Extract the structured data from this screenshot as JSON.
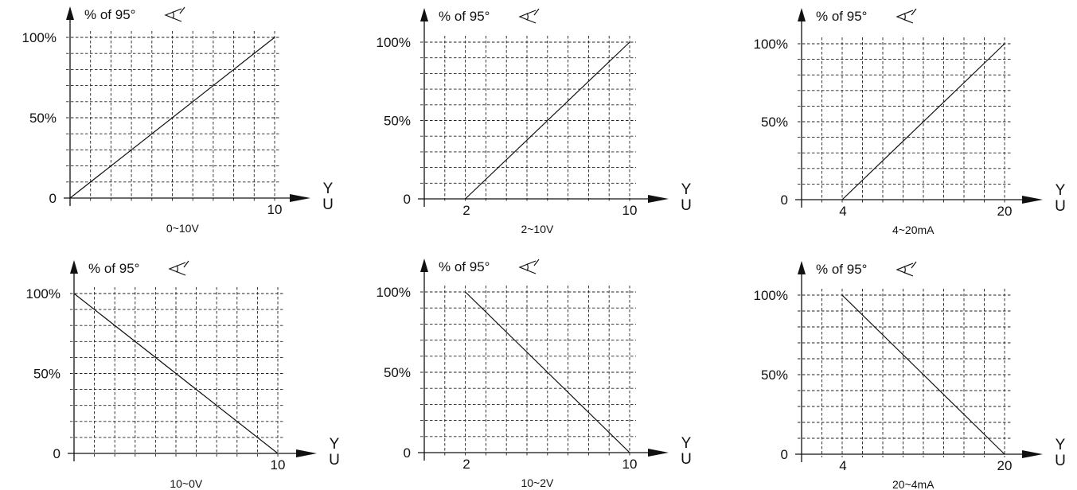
{
  "chart_data": [
    {
      "type": "line",
      "title": "0~10V",
      "ylabel": "% of 95°",
      "xlabel": "Y U",
      "xlim": [
        0,
        10
      ],
      "ylim": [
        0,
        100
      ],
      "x_tick_labels": [
        "10"
      ],
      "y_tick_labels": [
        "0",
        "50%",
        "100%"
      ],
      "grid": true,
      "series": [
        {
          "x": [
            0,
            10
          ],
          "y": [
            0,
            100
          ]
        }
      ]
    },
    {
      "type": "line",
      "title": "2~10V",
      "ylabel": "% of 95°",
      "xlabel": "Y U",
      "xlim": [
        0,
        10
      ],
      "ylim": [
        0,
        100
      ],
      "x_tick_labels": [
        "2",
        "10"
      ],
      "y_tick_labels": [
        "0",
        "50%",
        "100%"
      ],
      "grid": true,
      "series": [
        {
          "x": [
            2,
            10
          ],
          "y": [
            0,
            100
          ]
        }
      ]
    },
    {
      "type": "line",
      "title": "4~20mA",
      "ylabel": "% of 95°",
      "xlabel": "Y U",
      "xlim": [
        0,
        20
      ],
      "ylim": [
        0,
        100
      ],
      "x_tick_labels": [
        "4",
        "20"
      ],
      "y_tick_labels": [
        "0",
        "50%",
        "100%"
      ],
      "grid": true,
      "series": [
        {
          "x": [
            4,
            20
          ],
          "y": [
            0,
            100
          ]
        }
      ]
    },
    {
      "type": "line",
      "title": "10~0V",
      "ylabel": "% of 95°",
      "xlabel": "Y U",
      "xlim": [
        0,
        10
      ],
      "ylim": [
        0,
        100
      ],
      "x_tick_labels": [
        "10"
      ],
      "y_tick_labels": [
        "0",
        "50%",
        "100%"
      ],
      "grid": true,
      "series": [
        {
          "x": [
            0,
            10
          ],
          "y": [
            100,
            0
          ]
        }
      ]
    },
    {
      "type": "line",
      "title": "10~2V",
      "ylabel": "% of 95°",
      "xlabel": "Y U",
      "xlim": [
        0,
        10
      ],
      "ylim": [
        0,
        100
      ],
      "x_tick_labels": [
        "2",
        "10"
      ],
      "y_tick_labels": [
        "0",
        "50%",
        "100%"
      ],
      "grid": true,
      "series": [
        {
          "x": [
            2,
            10
          ],
          "y": [
            100,
            0
          ]
        }
      ]
    },
    {
      "type": "line",
      "title": "20~4mA",
      "ylabel": "% of 95°",
      "xlabel": "Y U",
      "xlim": [
        0,
        20
      ],
      "ylim": [
        0,
        100
      ],
      "x_tick_labels": [
        "4",
        "20"
      ],
      "y_tick_labels": [
        "0",
        "50%",
        "100%"
      ],
      "grid": true,
      "series": [
        {
          "x": [
            4,
            20
          ],
          "y": [
            100,
            0
          ]
        }
      ]
    }
  ],
  "style": {
    "ink": "#111111",
    "grid": "#222222",
    "background": "#ffffff"
  },
  "icons": {
    "angle": "angle-icon",
    "axis_arrow": "arrow-head-icon"
  }
}
